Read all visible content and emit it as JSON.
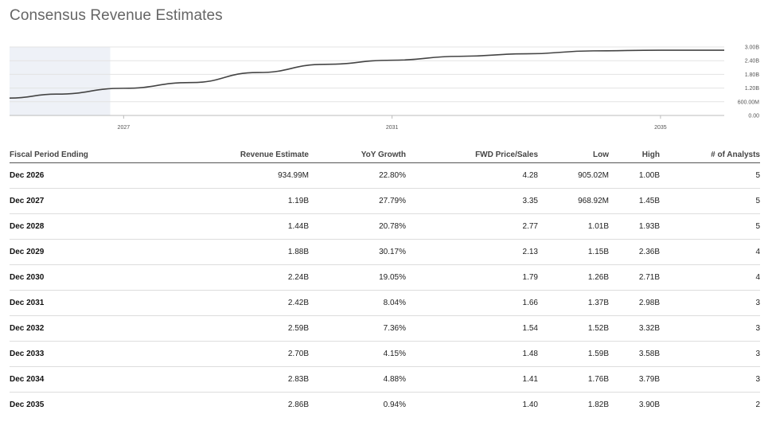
{
  "page": {
    "title": "Consensus Revenue Estimates"
  },
  "chart_data": {
    "type": "line",
    "x": [
      2025,
      2026,
      2027,
      2028,
      2029,
      2030,
      2031,
      2032,
      2033,
      2034,
      2035
    ],
    "values": [
      0.76,
      0.935,
      1.19,
      1.44,
      1.88,
      2.24,
      2.42,
      2.59,
      2.7,
      2.83,
      2.86
    ],
    "x_ticks": [
      "2027",
      "2031",
      "2035"
    ],
    "y_ticks": [
      "3.00B",
      "2.40B",
      "1.80B",
      "1.20B",
      "600.00M",
      "0.00"
    ],
    "ylim": [
      0,
      3.0
    ],
    "title": "",
    "xlabel": "",
    "ylabel": "",
    "grid": true,
    "line_color": "#444444",
    "shade_color": "#eef1f7"
  },
  "table": {
    "headers": [
      "Fiscal Period Ending",
      "Revenue Estimate",
      "YoY Growth",
      "FWD Price/Sales",
      "Low",
      "High",
      "# of Analysts"
    ],
    "rows": [
      [
        "Dec 2026",
        "934.99M",
        "22.80%",
        "4.28",
        "905.02M",
        "1.00B",
        "5"
      ],
      [
        "Dec 2027",
        "1.19B",
        "27.79%",
        "3.35",
        "968.92M",
        "1.45B",
        "5"
      ],
      [
        "Dec 2028",
        "1.44B",
        "20.78%",
        "2.77",
        "1.01B",
        "1.93B",
        "5"
      ],
      [
        "Dec 2029",
        "1.88B",
        "30.17%",
        "2.13",
        "1.15B",
        "2.36B",
        "4"
      ],
      [
        "Dec 2030",
        "2.24B",
        "19.05%",
        "1.79",
        "1.26B",
        "2.71B",
        "4"
      ],
      [
        "Dec 2031",
        "2.42B",
        "8.04%",
        "1.66",
        "1.37B",
        "2.98B",
        "3"
      ],
      [
        "Dec 2032",
        "2.59B",
        "7.36%",
        "1.54",
        "1.52B",
        "3.32B",
        "3"
      ],
      [
        "Dec 2033",
        "2.70B",
        "4.15%",
        "1.48",
        "1.59B",
        "3.58B",
        "3"
      ],
      [
        "Dec 2034",
        "2.83B",
        "4.88%",
        "1.41",
        "1.76B",
        "3.79B",
        "3"
      ],
      [
        "Dec 2035",
        "2.86B",
        "0.94%",
        "1.40",
        "1.82B",
        "3.90B",
        "2"
      ]
    ]
  }
}
